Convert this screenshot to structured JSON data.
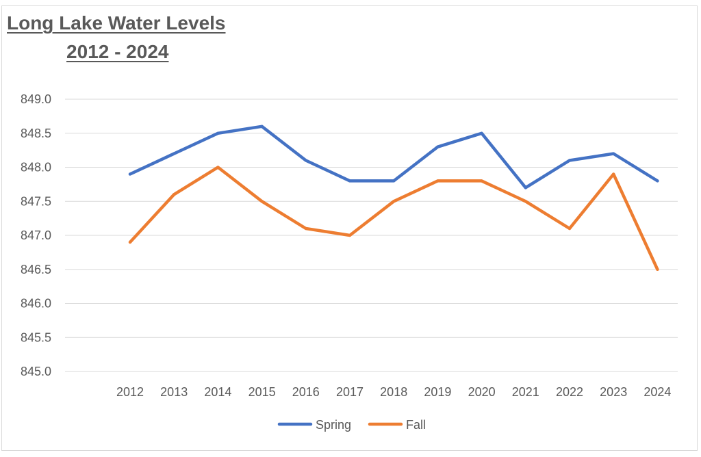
{
  "chart_data": {
    "type": "line",
    "title": "Long Lake Water Levels",
    "subtitle": "2012 - 2024",
    "xlabel": "",
    "ylabel": "",
    "categories": [
      "2012",
      "2013",
      "2014",
      "2015",
      "2016",
      "2017",
      "2018",
      "2019",
      "2020",
      "2021",
      "2022",
      "2023",
      "2024"
    ],
    "ylim": [
      845.0,
      849.0
    ],
    "yticks": [
      "849.0",
      "848.5",
      "848.0",
      "847.5",
      "847.0",
      "846.5",
      "846.0",
      "845.5",
      "845.0"
    ],
    "grid": true,
    "legend_position": "bottom",
    "series": [
      {
        "name": "Spring",
        "color": "#4472C4",
        "values": [
          847.9,
          848.2,
          848.5,
          848.6,
          848.1,
          847.8,
          847.8,
          848.3,
          848.5,
          847.7,
          848.1,
          848.2,
          847.8
        ]
      },
      {
        "name": "Fall",
        "color": "#ED7D31",
        "values": [
          846.9,
          847.6,
          848.0,
          847.5,
          847.1,
          847.0,
          847.5,
          847.8,
          847.8,
          847.5,
          847.1,
          847.9,
          846.5
        ]
      }
    ]
  }
}
